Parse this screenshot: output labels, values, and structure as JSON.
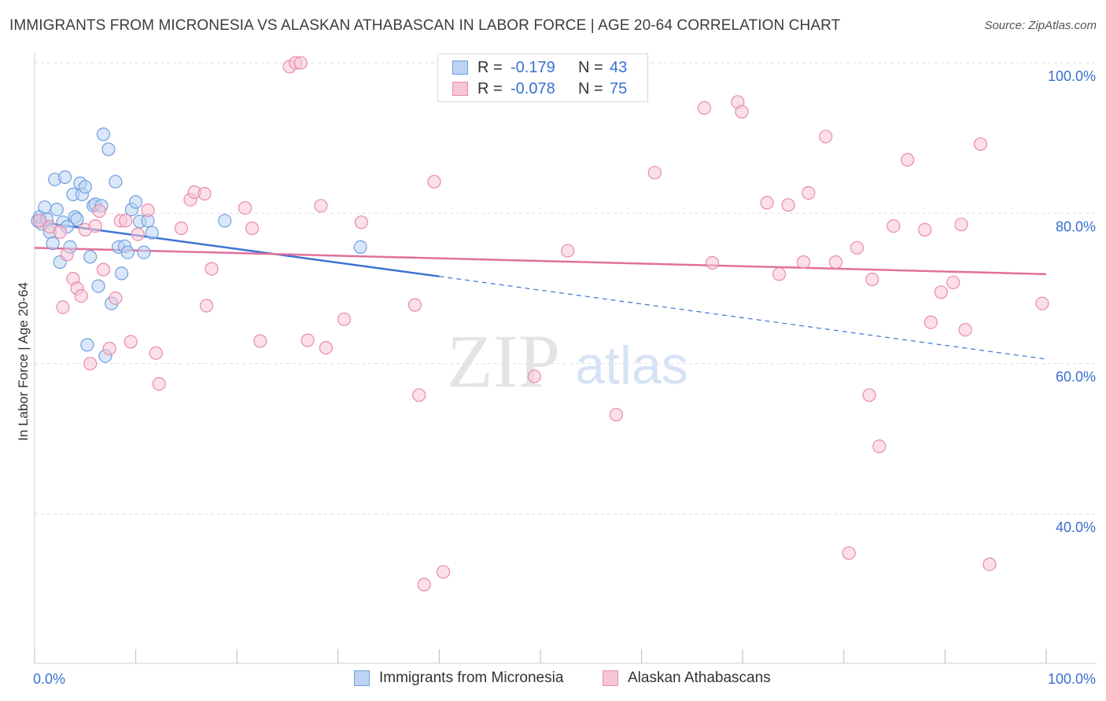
{
  "title": "IMMIGRANTS FROM MICRONESIA VS ALASKAN ATHABASCAN IN LABOR FORCE | AGE 20-64 CORRELATION CHART",
  "source": "Source: ZipAtlas.com",
  "watermark": {
    "zip": "ZIP",
    "atlas": "atlas"
  },
  "legend": {
    "rows": [
      {
        "r_label": "R =",
        "r_value": "-0.179",
        "n_label": "N =",
        "n_value": "43"
      },
      {
        "r_label": "R =",
        "r_value": "-0.078",
        "n_label": "N =",
        "n_value": "75"
      }
    ]
  },
  "bottom_legend": [
    "Immigrants from Micronesia",
    "Alaskan Athabascans"
  ],
  "chart_data": {
    "type": "scatter",
    "title": "IMMIGRANTS FROM MICRONESIA VS ALASKAN ATHABASCAN IN LABOR FORCE | AGE 20-64 CORRELATION CHART",
    "xlabel": "",
    "ylabel": "In Labor Force | Age 20-64",
    "xlim": [
      0,
      100
    ],
    "ylim": [
      20,
      102
    ],
    "x_tick_labels": [
      "0.0%",
      "100.0%"
    ],
    "y_ticks": [
      40,
      60,
      80,
      100
    ],
    "y_tick_labels": [
      "40.0%",
      "60.0%",
      "80.0%",
      "100.0%"
    ],
    "grid": true,
    "colors": {
      "blue": "#6f9fe0",
      "blue_fill": "#bcd3f3",
      "pink": "#e98aab",
      "pink_fill": "#f7c6d6",
      "blue_line": "#3a74d3",
      "pink_line": "#e0709a",
      "tick_text": "#3a6fd1"
    },
    "series": [
      {
        "name": "Immigrants from Micronesia",
        "color": "blue",
        "x": [
          0.3,
          0.5,
          0.7,
          1.0,
          1.2,
          1.5,
          1.8,
          2.0,
          2.2,
          2.5,
          2.8,
          3.0,
          3.2,
          3.5,
          3.8,
          4.0,
          4.2,
          4.5,
          4.7,
          5.0,
          5.2,
          5.5,
          5.8,
          6.0,
          6.3,
          6.6,
          6.8,
          7.0,
          7.3,
          7.6,
          8.0,
          8.3,
          8.6,
          8.9,
          9.2,
          9.6,
          10.0,
          10.4,
          10.8,
          11.2,
          11.6,
          18.8,
          32.2
        ],
        "y": [
          79.0,
          79.5,
          78.6,
          80.8,
          79.2,
          77.5,
          76.0,
          84.5,
          80.5,
          73.5,
          78.8,
          84.8,
          78.2,
          75.5,
          82.5,
          79.5,
          79.2,
          84.0,
          82.5,
          83.5,
          62.5,
          74.2,
          81.0,
          81.2,
          70.3,
          81.0,
          90.5,
          61.0,
          88.5,
          68.0,
          84.2,
          75.5,
          72.0,
          75.6,
          74.8,
          80.5,
          81.5,
          78.9,
          74.8,
          79.0,
          77.4,
          79.0,
          75.5
        ]
      },
      {
        "name": "Alaskan Athabascans",
        "color": "pink",
        "x": [
          0.5,
          1.5,
          2.5,
          2.8,
          3.2,
          3.8,
          4.2,
          4.6,
          5.0,
          5.5,
          6.0,
          6.4,
          6.8,
          7.4,
          8.0,
          8.5,
          9.0,
          9.5,
          10.2,
          11.2,
          12.0,
          12.3,
          14.5,
          15.4,
          15.8,
          16.8,
          17.0,
          17.5,
          20.8,
          21.5,
          22.3,
          25.2,
          25.8,
          26.3,
          27.0,
          28.3,
          28.8,
          30.6,
          32.3,
          37.6,
          38.0,
          38.5,
          39.5,
          40.4,
          49.4,
          52.7,
          57.5,
          61.3,
          66.2,
          67.0,
          69.5,
          69.9,
          72.4,
          73.6,
          74.5,
          76.0,
          76.5,
          78.2,
          79.2,
          80.5,
          81.3,
          82.5,
          82.8,
          83.5,
          84.9,
          86.3,
          88.0,
          88.6,
          89.6,
          90.8,
          91.6,
          92.0,
          93.5,
          94.4,
          99.6
        ],
        "y": [
          79.0,
          78.2,
          77.5,
          67.5,
          74.5,
          71.3,
          70.0,
          69.0,
          77.8,
          60.0,
          78.3,
          80.3,
          72.5,
          62.0,
          68.7,
          79.0,
          79.0,
          62.9,
          77.2,
          80.4,
          61.4,
          57.3,
          78.0,
          81.8,
          82.8,
          82.6,
          67.7,
          72.6,
          80.7,
          78.0,
          63.0,
          99.5,
          100.0,
          100.0,
          63.1,
          81.0,
          62.1,
          65.9,
          78.8,
          67.8,
          55.8,
          30.6,
          84.2,
          32.3,
          58.3,
          75.0,
          53.2,
          85.4,
          94.0,
          73.4,
          94.8,
          93.5,
          81.4,
          71.9,
          81.1,
          73.5,
          82.7,
          90.2,
          73.5,
          34.8,
          75.4,
          55.8,
          71.2,
          49.0,
          78.3,
          87.1,
          77.8,
          65.5,
          69.5,
          70.8,
          78.5,
          64.5,
          89.2,
          33.3,
          68.0
        ]
      }
    ],
    "trend_lines": [
      {
        "series": "Immigrants from Micronesia",
        "x_start": 0,
        "y_start": 78.9,
        "x_end": 40,
        "y_end": 71.6,
        "dashed_to_x": 100,
        "dashed_to_y": 60.6
      },
      {
        "series": "Alaskan Athabascans",
        "x_start": 0,
        "y_start": 75.4,
        "x_end": 100,
        "y_end": 71.9
      }
    ]
  }
}
